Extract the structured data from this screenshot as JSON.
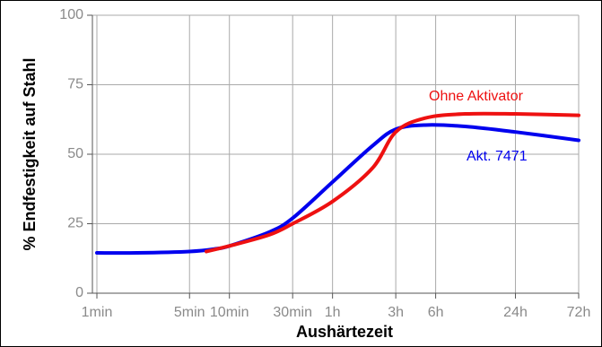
{
  "chart_data": {
    "type": "line",
    "x_label": "Aushärtezeit",
    "y_label": "% Endfestigkeit auf Stahl",
    "xscale": "log",
    "grid": true,
    "xlim": [
      1,
      4320
    ],
    "ylim": [
      0,
      100
    ],
    "yticks": [
      0,
      25,
      50,
      75,
      100
    ],
    "xticks": [
      {
        "value": 1,
        "label": "1min"
      },
      {
        "value": 5,
        "label": "5min"
      },
      {
        "value": 10,
        "label": "10min"
      },
      {
        "value": 30,
        "label": "30min"
      },
      {
        "value": 60,
        "label": "1h"
      },
      {
        "value": 180,
        "label": "3h"
      },
      {
        "value": 360,
        "label": "6h"
      },
      {
        "value": 1440,
        "label": "24h"
      },
      {
        "value": 4320,
        "label": "72h"
      }
    ],
    "series": [
      {
        "name": "Akt. 7471",
        "color": "#0000ee",
        "x": [
          1,
          2,
          5,
          8,
          10,
          20,
          30,
          60,
          120,
          180,
          300,
          600,
          1440,
          4320
        ],
        "values": [
          14.5,
          14.5,
          15,
          16,
          17,
          22,
          27,
          40,
          53,
          59,
          60.5,
          60,
          58,
          55
        ]
      },
      {
        "name": "Ohne Aktivator",
        "color": "#ee1111",
        "x": [
          6.7,
          10,
          20,
          30,
          60,
          120,
          180,
          300,
          600,
          1440,
          4320
        ],
        "values": [
          15,
          17,
          21,
          25,
          33,
          45,
          58,
          63,
          64.5,
          64.5,
          64
        ]
      }
    ]
  }
}
